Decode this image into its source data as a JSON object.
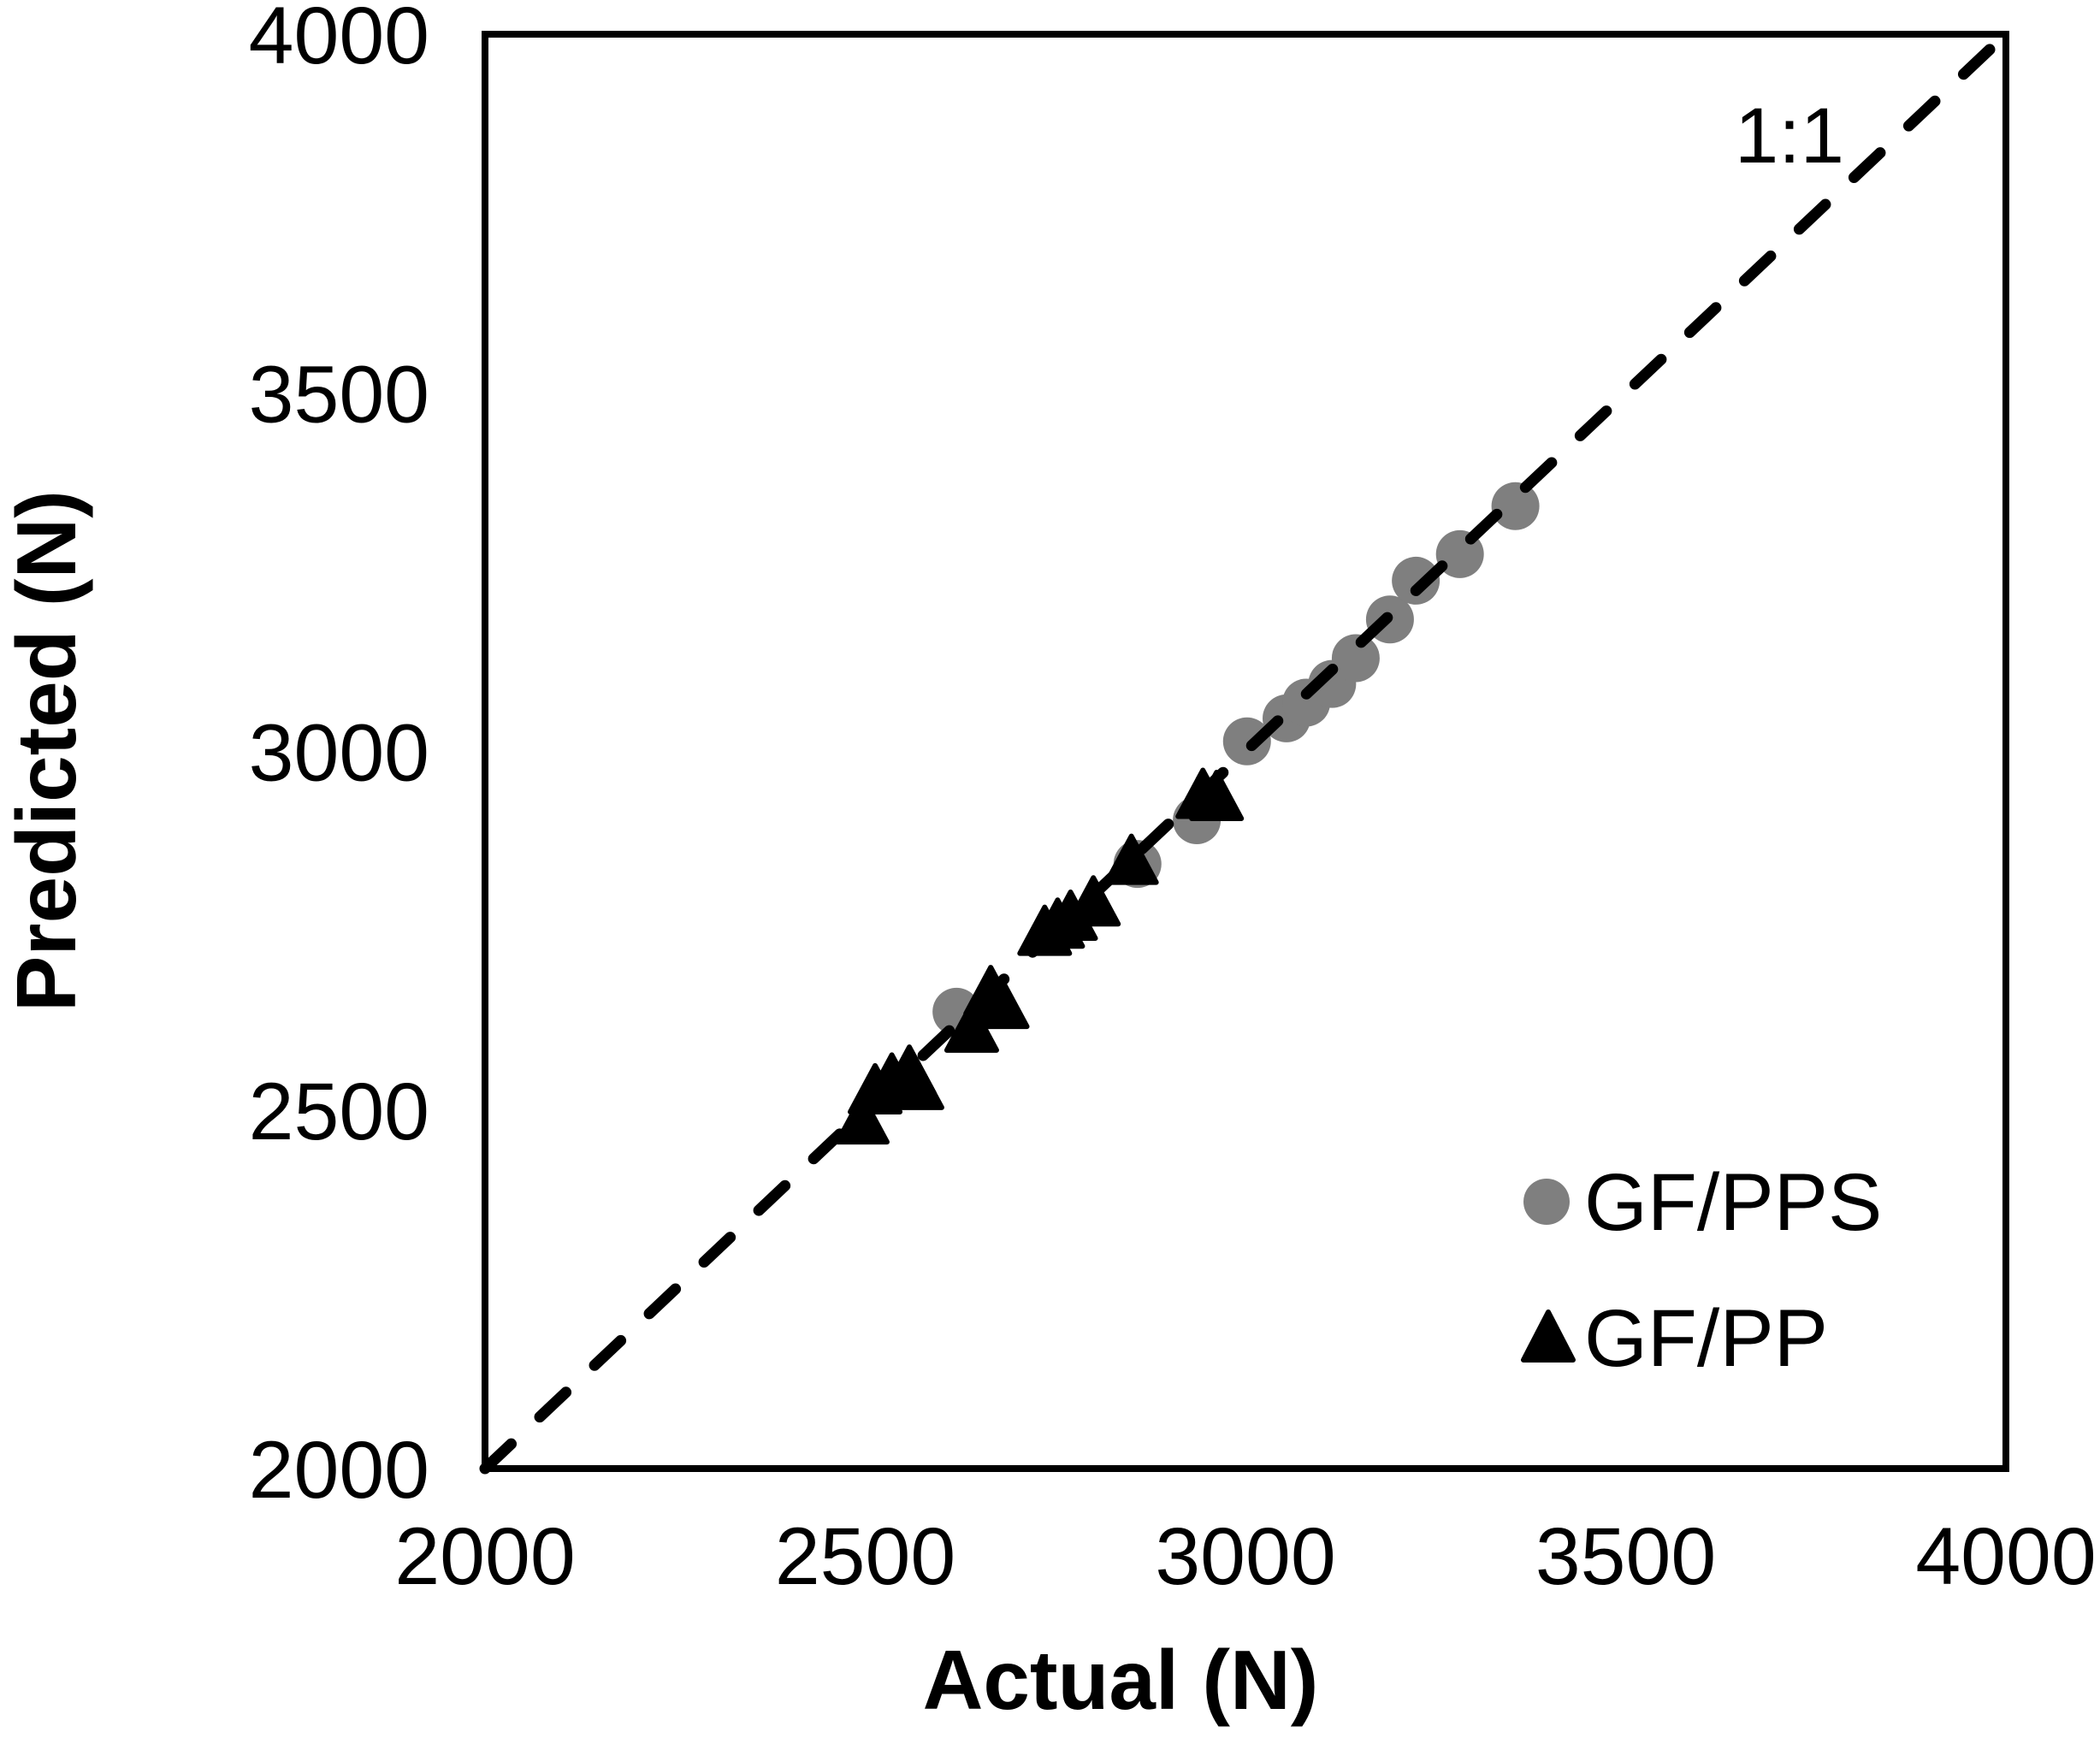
{
  "figure": {
    "background": "#ffffff",
    "kind": "scatter plot of predicted vs actual load"
  },
  "legend": {
    "items": [
      {
        "label": "GF/PPS",
        "marker": "circle-icon",
        "color": "#7f7f7f"
      },
      {
        "label": "GF/PP",
        "marker": "triangle-icon",
        "color": "#000000"
      }
    ]
  },
  "chart_data": {
    "type": "scatter",
    "title": "",
    "xlabel": "Actual (N)",
    "ylabel": "Predicted (N)",
    "xlim": [
      2000,
      4000
    ],
    "ylim": [
      2000,
      4000
    ],
    "x_ticks": [
      2000,
      2500,
      3000,
      3500,
      4000
    ],
    "y_ticks": [
      2000,
      2500,
      3000,
      3500,
      4000
    ],
    "grid": false,
    "legend_position": "inside lower right",
    "reference_line": {
      "label": "1:1",
      "style": "dashed",
      "from": [
        2000,
        2000
      ],
      "to": [
        4000,
        4000
      ]
    },
    "series": [
      {
        "name": "GF/PPS",
        "marker": "circle",
        "color": "#7f7f7f",
        "points": [
          [
            2620,
            2637
          ],
          [
            2858,
            2843
          ],
          [
            2936,
            2904
          ],
          [
            3002,
            3014
          ],
          [
            3054,
            3046
          ],
          [
            3080,
            3068
          ],
          [
            3114,
            3094
          ],
          [
            3145,
            3130
          ],
          [
            3190,
            3184
          ],
          [
            3224,
            3238
          ],
          [
            3282,
            3275
          ],
          [
            3355,
            3342
          ]
        ]
      },
      {
        "name": "GF/PP",
        "marker": "triangle",
        "color": "#000000",
        "points": [
          [
            2496,
            2484
          ],
          [
            2513,
            2526
          ],
          [
            2535,
            2541
          ],
          [
            2558,
            2552
          ],
          [
            2568,
            2532
          ],
          [
            2640,
            2612
          ],
          [
            2665,
            2663
          ],
          [
            2680,
            2645
          ],
          [
            2736,
            2747
          ],
          [
            2753,
            2757
          ],
          [
            2770,
            2768
          ],
          [
            2800,
            2788
          ],
          [
            2850,
            2846
          ],
          [
            2944,
            2938
          ],
          [
            2962,
            2935
          ]
        ]
      }
    ]
  }
}
